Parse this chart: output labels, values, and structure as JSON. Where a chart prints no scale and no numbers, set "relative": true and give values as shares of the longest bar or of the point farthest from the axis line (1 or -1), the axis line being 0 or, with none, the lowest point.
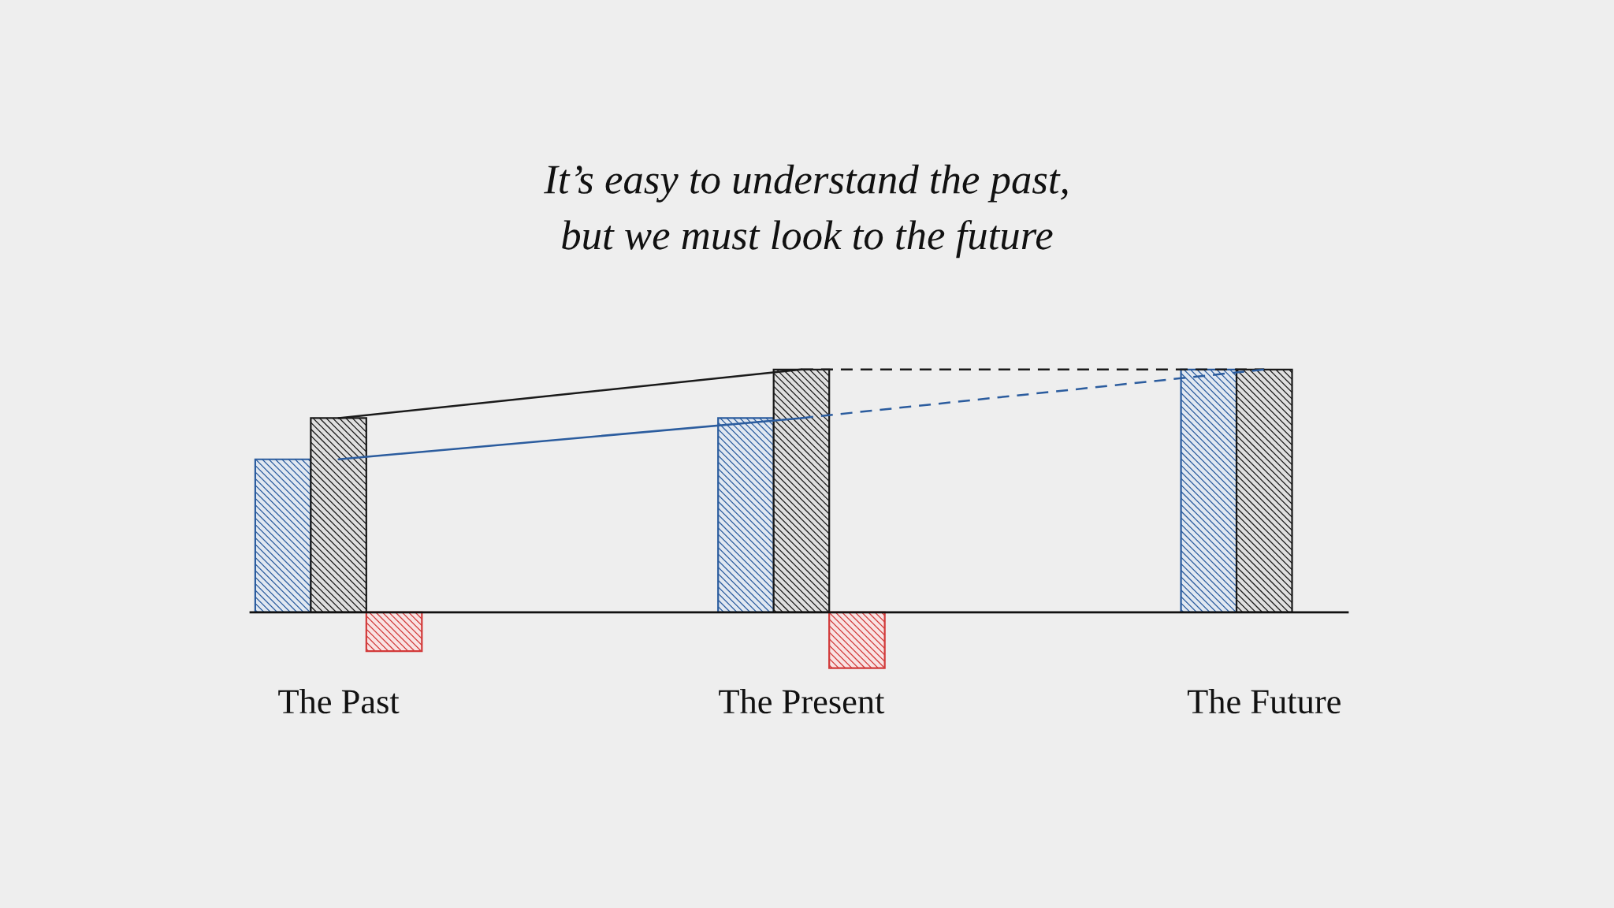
{
  "chart_data": {
    "type": "bar",
    "title": "It’s easy to understand the past,\nbut we must look to the future",
    "categories": [
      "The Past",
      "The Present",
      "The Future"
    ],
    "relative": true,
    "series": [
      {
        "color": "#2b5c9e",
        "values": [
          0.63,
          0.8,
          1.0
        ]
      },
      {
        "color": "#1a1a1a",
        "values": [
          0.8,
          1.0,
          1.0
        ]
      },
      {
        "color": "#d23a3a",
        "values": [
          -0.16,
          -0.23,
          null
        ]
      },
      {
        "type": "line",
        "color": "#1a1a1a",
        "line_style": "solid",
        "values": [
          0.8,
          1.0,
          null
        ]
      },
      {
        "type": "line",
        "color": "#2b5c9e",
        "line_style": "solid",
        "values": [
          0.63,
          0.8,
          null
        ]
      },
      {
        "type": "line",
        "color": "#1a1a1a",
        "line_style": "dashed",
        "values": [
          null,
          1.0,
          1.0
        ]
      },
      {
        "type": "line",
        "color": "#2b5c9e",
        "line_style": "dashed",
        "values": [
          null,
          0.8,
          1.0
        ]
      }
    ]
  }
}
